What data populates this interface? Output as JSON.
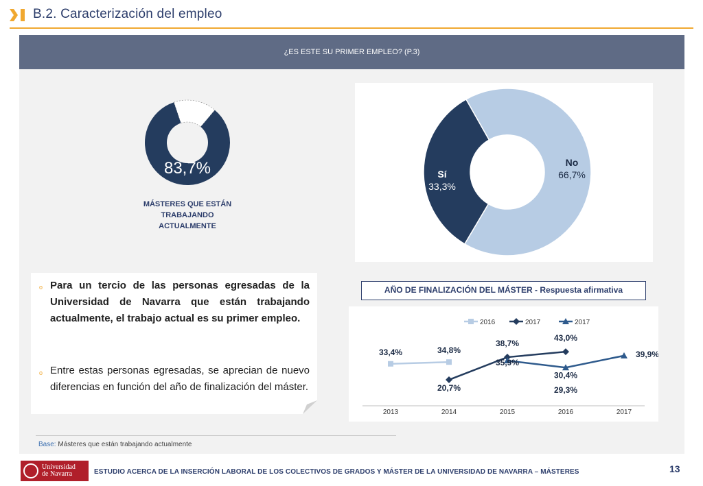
{
  "header": {
    "title": "B.2. Caracterización del empleo"
  },
  "banner": {
    "question": "¿ES ESTE SU PRIMER EMPLEO? (P.3)"
  },
  "colors": {
    "navy": "#243c5e",
    "light_blue": "#b7cce4",
    "accent": "#f0a830",
    "brand_red": "#b01f2a"
  },
  "small_donut": {
    "value_text": "83,7%",
    "fraction": 0.837,
    "caption": "MÁSTERES QUE ESTÁN TRABAJANDO ACTUALMENTE"
  },
  "chart_data": [
    {
      "type": "pie",
      "variant": "donut",
      "slices": [
        {
          "label": "Sí",
          "value": 33.3,
          "value_text": "33,3%",
          "color": "#243c5e"
        },
        {
          "label": "No",
          "value": 66.7,
          "value_text": "66,7%",
          "color": "#b7cce4"
        }
      ]
    },
    {
      "type": "line",
      "title": "AÑO DE FINALIZACIÓN DEL MÁSTER - Respuesta afirmativa",
      "categories": [
        "2013",
        "2014",
        "2015",
        "2016",
        "2017"
      ],
      "legend": "top",
      "grid": false,
      "ylim": [
        0,
        60
      ],
      "series": [
        {
          "name": "2016",
          "marker": "square",
          "color": "#b7cce4",
          "values": [
            33.4,
            34.8,
            null,
            null,
            null
          ],
          "labels": [
            "33,4%",
            "34,8%",
            null,
            null,
            null
          ]
        },
        {
          "name": "2017",
          "marker": "diamond",
          "color": "#243c5e",
          "values": [
            null,
            20.7,
            38.7,
            43.0,
            null
          ],
          "labels": [
            null,
            "20,7%",
            "38,7%",
            "43,0%",
            null
          ]
        },
        {
          "name": "2017",
          "marker": "triangle",
          "color": "#2e5a8c",
          "values": [
            null,
            null,
            35.9,
            30.4,
            39.9
          ],
          "labels": [
            null,
            null,
            "35,9%",
            "30,4%",
            "39,9%"
          ]
        }
      ],
      "extra_labels": [
        "29,3%"
      ]
    }
  ],
  "findings": {
    "bold_paragraph": "Para un tercio de las personas egresadas de la Universidad de Navarra que están trabajando actualmente, el trabajo actual es su primer empleo.",
    "paragraph": "Entre estas personas egresadas, se aprecian de nuevo diferencias en función del año de finalización del máster."
  },
  "base_note": {
    "label": "Base:",
    "text": "Másteres que están trabajando actualmente"
  },
  "footer": {
    "logo_name_line1": "Universidad",
    "logo_name_line2": "de Navarra",
    "study_title": "ESTUDIO ACERCA DE LA INSERCIÓN LABORAL DE LOS COLECTIVOS DE GRADOS Y MÁSTER DE LA UNIVERSIDAD DE NAVARRA – MÁSTERES",
    "page_number": "13"
  }
}
